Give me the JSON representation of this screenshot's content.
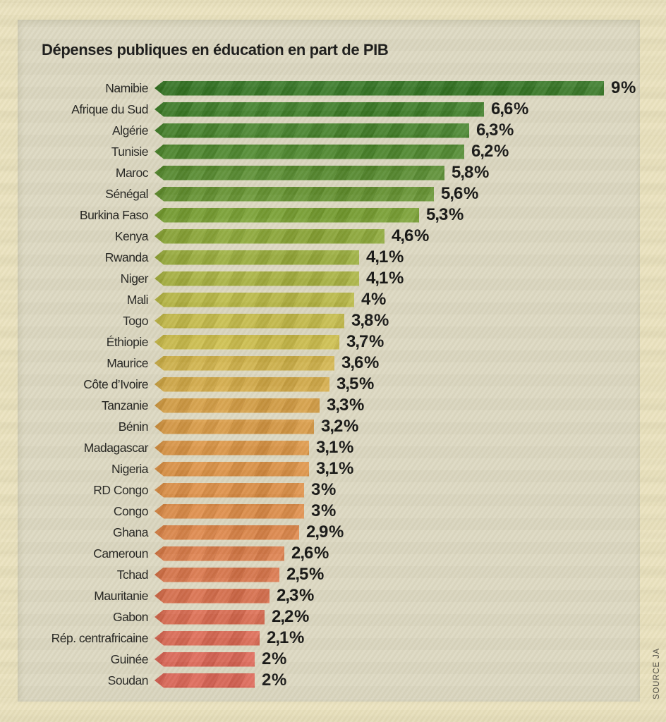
{
  "chart": {
    "title": "Dépenses publiques en éducation en part de PIB",
    "source": "SOURCE JA"
  },
  "chart_data": {
    "type": "bar",
    "orientation": "horizontal",
    "title": "Dépenses publiques en éducation en part de PIB",
    "unit": "% du PIB",
    "xlim": [
      0,
      9
    ],
    "grid": false,
    "legend": false,
    "categories": [
      "Namibie",
      "Afrique du Sud",
      "Algérie",
      "Tunisie",
      "Maroc",
      "Sénégal",
      "Burkina Faso",
      "Kenya",
      "Rwanda",
      "Niger",
      "Mali",
      "Togo",
      "Éthiopie",
      "Maurice",
      "Côte d’Ivoire",
      "Tanzanie",
      "Bénin",
      "Madagascar",
      "Nigeria",
      "RD Congo",
      "Congo",
      "Ghana",
      "Cameroun",
      "Tchad",
      "Mauritanie",
      "Gabon",
      "Rép. centrafricaine",
      "Guinée",
      "Soudan"
    ],
    "values": [
      9,
      6.6,
      6.3,
      6.2,
      5.8,
      5.6,
      5.3,
      4.6,
      4.1,
      4.1,
      4,
      3.8,
      3.7,
      3.6,
      3.5,
      3.3,
      3.2,
      3.1,
      3.1,
      3,
      3,
      2.9,
      2.6,
      2.5,
      2.3,
      2.2,
      2.1,
      2,
      2
    ],
    "value_labels": [
      "9 %",
      "6,6 %",
      "6,3 %",
      "6,2 %",
      "5,8 %",
      "5,6 %",
      "5,3 %",
      "4,6 %",
      "4,1 %",
      "4,1 %",
      "4 %",
      "3,8 %",
      "3,7 %",
      "3,6 %",
      "3,5 %",
      "3,3 %",
      "3,2 %",
      "3,1 %",
      "3,1 %",
      "3 %",
      "3 %",
      "2,9 %",
      "2,6 %",
      "2,5 %",
      "2,3 %",
      "2,2 %",
      "2,1 %",
      "2 %",
      "2 %"
    ],
    "bar_colors": [
      "#2e741e",
      "#357a20",
      "#3c7e22",
      "#448323",
      "#4f8826",
      "#5f9129",
      "#75a02c",
      "#8aa832",
      "#98ad36",
      "#a7b23a",
      "#b8b83e",
      "#c4ba41",
      "#ccbc43",
      "#d2b243",
      "#d6aa42",
      "#da9f41",
      "#dc9940",
      "#de933f",
      "#df8f3e",
      "#df8b3e",
      "#df873f",
      "#df8141",
      "#de7944",
      "#dd7246",
      "#dd6c49",
      "#de674c",
      "#de634e",
      "#de5f4f",
      "#dd5d4e"
    ],
    "source": "SOURCE JA"
  },
  "style_colors": {
    "page_background": "#eae2bf",
    "panel_background": "#dcd8c2",
    "title_text": "#141414",
    "label_text": "#1e1e1c",
    "value_text": "#101010",
    "source_text": "#4c4a42"
  }
}
